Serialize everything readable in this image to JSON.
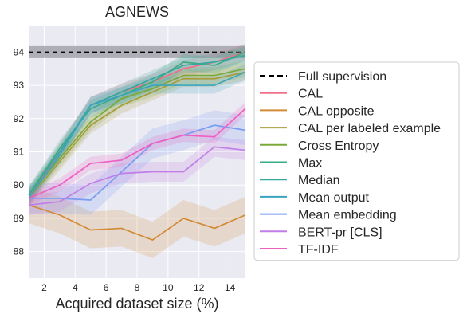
{
  "chart_data": {
    "type": "line",
    "title": "AGNEWS",
    "xlabel": "Acquired dataset size (%)",
    "ylabel": "",
    "xlim": [
      1,
      15
    ],
    "ylim": [
      87.2,
      94.8
    ],
    "xticks": [
      "2",
      "4",
      "6",
      "8",
      "10",
      "12",
      "14"
    ],
    "yticks": [
      "88",
      "89",
      "90",
      "91",
      "92",
      "93",
      "94"
    ],
    "grid": true,
    "legend_position": "right",
    "reference": {
      "name": "Full supervision",
      "value": 94.0,
      "band": [
        93.82,
        94.18
      ],
      "style": "dashed",
      "color": "#000000"
    },
    "x": [
      1,
      3,
      5,
      7,
      9,
      11,
      13,
      15
    ],
    "series": [
      {
        "name": "CAL",
        "color": "#f07089",
        "values": [
          89.6,
          91.0,
          92.4,
          92.8,
          93.1,
          93.5,
          93.7,
          94.0
        ],
        "band": 0.25
      },
      {
        "name": "CAL opposite",
        "color": "#d28a35",
        "values": [
          89.4,
          89.1,
          88.65,
          88.7,
          88.35,
          89.0,
          88.7,
          89.1
        ],
        "band": 0.55
      },
      {
        "name": "CAL per labeled example",
        "color": "#a89c3a",
        "values": [
          89.6,
          90.7,
          91.8,
          92.4,
          92.8,
          93.2,
          93.2,
          93.4
        ],
        "band": 0.25
      },
      {
        "name": "Cross Entropy",
        "color": "#7aa93a",
        "values": [
          89.7,
          90.8,
          91.9,
          92.6,
          92.9,
          93.3,
          93.3,
          93.5
        ],
        "band": 0.25
      },
      {
        "name": "Max",
        "color": "#37ad82",
        "values": [
          89.7,
          91.1,
          92.3,
          92.7,
          93.1,
          93.7,
          93.6,
          94.0
        ],
        "band": 0.25
      },
      {
        "name": "Median",
        "color": "#36a7a0",
        "values": [
          89.7,
          91.0,
          92.4,
          92.8,
          93.2,
          93.6,
          93.7,
          93.9
        ],
        "band": 0.25
      },
      {
        "name": "Mean output",
        "color": "#3aa5be",
        "values": [
          89.6,
          90.9,
          92.4,
          92.7,
          93.0,
          93.0,
          93.0,
          93.4
        ],
        "band": 0.25
      },
      {
        "name": "Mean embedding",
        "color": "#7a9df2",
        "values": [
          89.6,
          89.6,
          89.55,
          90.4,
          91.25,
          91.5,
          91.8,
          91.65
        ],
        "band": 0.45
      },
      {
        "name": "BERT-pr [CLS]",
        "color": "#c17ee8",
        "values": [
          89.4,
          89.5,
          90.05,
          90.35,
          90.4,
          90.4,
          91.15,
          91.05
        ],
        "band": 0.3
      },
      {
        "name": "TF-IDF",
        "color": "#ee5fc4",
        "values": [
          89.6,
          90.0,
          90.65,
          90.75,
          91.25,
          91.5,
          91.45,
          92.3
        ],
        "band": 0.2
      }
    ]
  }
}
